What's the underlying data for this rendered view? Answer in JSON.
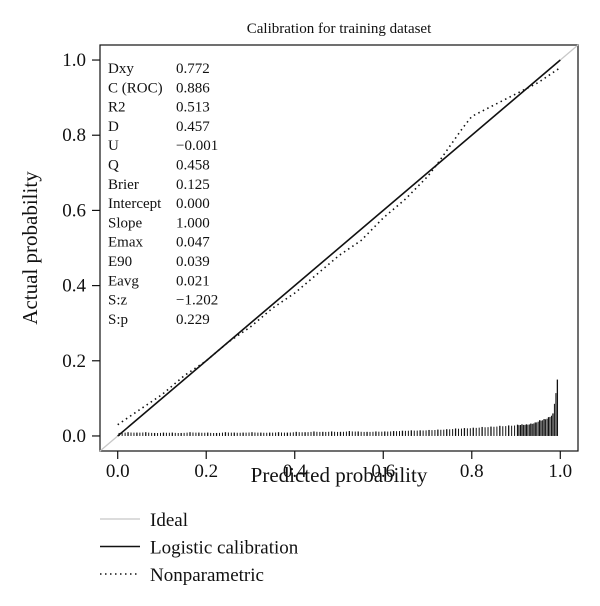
{
  "chart_data": {
    "type": "line",
    "title": "Calibration for training dataset",
    "xlabel": "Predicted probability",
    "ylabel": "Actual probability",
    "xlim": [
      -0.04,
      1.04
    ],
    "ylim": [
      -0.04,
      1.04
    ],
    "x_ticks": [
      "0.0",
      "0.2",
      "0.4",
      "0.6",
      "0.8",
      "1.0"
    ],
    "y_ticks": [
      "0.0",
      "0.2",
      "0.4",
      "0.6",
      "0.8",
      "1.0"
    ],
    "grid": false,
    "series": [
      {
        "name": "Ideal",
        "style": "solid-light-gray",
        "color": "#c8c8c8",
        "x": [
          -0.04,
          1.04
        ],
        "y": [
          -0.04,
          1.04
        ]
      },
      {
        "name": "Logistic calibration",
        "style": "solid-black",
        "color": "#111111",
        "x": [
          0.0,
          1.0
        ],
        "y": [
          0.0,
          1.0
        ]
      },
      {
        "name": "Nonparametric",
        "style": "dotted-black",
        "color": "#111111",
        "x": [
          0.0,
          0.05,
          0.1,
          0.15,
          0.2,
          0.25,
          0.3,
          0.35,
          0.4,
          0.45,
          0.5,
          0.55,
          0.6,
          0.65,
          0.7,
          0.72,
          0.75,
          0.78,
          0.8,
          0.85,
          0.9,
          0.95,
          1.0
        ],
        "y": [
          0.03,
          0.07,
          0.11,
          0.16,
          0.2,
          0.25,
          0.29,
          0.34,
          0.38,
          0.43,
          0.48,
          0.52,
          0.58,
          0.63,
          0.69,
          0.72,
          0.77,
          0.82,
          0.85,
          0.88,
          0.91,
          0.94,
          0.98
        ]
      }
    ],
    "histogram": {
      "x": [
        0.0,
        0.02,
        0.04,
        0.06,
        0.08,
        0.1,
        0.12,
        0.14,
        0.16,
        0.18,
        0.2,
        0.22,
        0.24,
        0.26,
        0.28,
        0.3,
        0.32,
        0.34,
        0.36,
        0.38,
        0.4,
        0.42,
        0.44,
        0.46,
        0.48,
        0.5,
        0.52,
        0.54,
        0.56,
        0.58,
        0.6,
        0.62,
        0.64,
        0.66,
        0.68,
        0.7,
        0.72,
        0.74,
        0.76,
        0.78,
        0.8,
        0.82,
        0.84,
        0.86,
        0.88,
        0.9,
        0.91,
        0.92,
        0.93,
        0.94,
        0.95,
        0.96,
        0.97,
        0.98,
        0.99
      ],
      "heights": [
        0.008,
        0.01,
        0.009,
        0.01,
        0.008,
        0.009,
        0.009,
        0.008,
        0.01,
        0.009,
        0.009,
        0.008,
        0.01,
        0.009,
        0.009,
        0.01,
        0.009,
        0.009,
        0.01,
        0.009,
        0.011,
        0.01,
        0.012,
        0.011,
        0.012,
        0.011,
        0.013,
        0.012,
        0.011,
        0.012,
        0.012,
        0.013,
        0.014,
        0.015,
        0.015,
        0.016,
        0.017,
        0.018,
        0.02,
        0.021,
        0.022,
        0.024,
        0.025,
        0.027,
        0.028,
        0.03,
        0.031,
        0.031,
        0.033,
        0.036,
        0.042,
        0.045,
        0.05,
        0.06,
        0.15
      ]
    },
    "stats": [
      {
        "label": "Dxy",
        "value": "0.772"
      },
      {
        "label": "C (ROC)",
        "value": "0.886"
      },
      {
        "label": "R2",
        "value": "0.513"
      },
      {
        "label": "D",
        "value": "0.457"
      },
      {
        "label": "U",
        "value": "−0.001"
      },
      {
        "label": "Q",
        "value": "0.458"
      },
      {
        "label": "Brier",
        "value": "0.125"
      },
      {
        "label": "Intercept",
        "value": "0.000"
      },
      {
        "label": "Slope",
        "value": "1.000"
      },
      {
        "label": "Emax",
        "value": "0.047"
      },
      {
        "label": "E90",
        "value": "0.039"
      },
      {
        "label": "Eavg",
        "value": "0.021"
      },
      {
        "label": "S:z",
        "value": "−1.202"
      },
      {
        "label": "S:p",
        "value": "0.229"
      }
    ],
    "legend": {
      "placement": "bottom-left",
      "items": [
        {
          "label": "Ideal",
          "style": "solid-light-gray"
        },
        {
          "label": "Logistic calibration",
          "style": "solid-black"
        },
        {
          "label": "Nonparametric",
          "style": "dotted-black"
        }
      ]
    }
  }
}
